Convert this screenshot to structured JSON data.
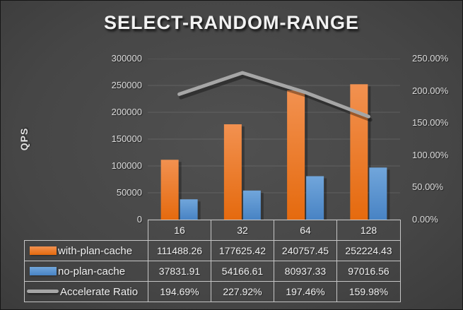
{
  "title": "SELECT-RANDOM-RANGE",
  "y_axis_label": "QPS",
  "colors": {
    "orange_top": "#F29150",
    "orange_bottom": "#E56A0E",
    "blue_top": "#71A6DB",
    "blue_bottom": "#4883C4",
    "line": "#A6A6A6",
    "grid": "rgba(255,255,255,0.12)",
    "axis_text": "#DCDCDC",
    "table_border": "#C6C6C6"
  },
  "chart_data": {
    "type": "bar",
    "subtype": "bar+line-combo",
    "title": "SELECT-RANDOM-RANGE",
    "ylabel": "QPS",
    "categories": [
      "16",
      "32",
      "64",
      "128"
    ],
    "bar_series": [
      {
        "name": "with-plan-cache",
        "axis": "left",
        "values": [
          111488.26,
          177625.42,
          240757.45,
          252224.43
        ]
      },
      {
        "name": "no-plan-cache",
        "axis": "left",
        "values": [
          37831.91,
          54166.61,
          80937.33,
          97016.56
        ]
      }
    ],
    "line_series": {
      "name": "Accelerate Ratio",
      "axis": "right",
      "values_percent": [
        194.69,
        227.92,
        197.46,
        159.98
      ]
    },
    "left_axis": {
      "min": 0,
      "max": 300000,
      "ticks": [
        "0",
        "50000",
        "100000",
        "150000",
        "200000",
        "250000",
        "300000"
      ]
    },
    "right_axis": {
      "min": 0,
      "max": 250,
      "ticks": [
        "0.00%",
        "50.00%",
        "100.00%",
        "150.00%",
        "200.00%",
        "250.00%"
      ]
    },
    "grid": true,
    "legend_position": "data-table-left"
  },
  "table": {
    "headers": [
      "16",
      "32",
      "64",
      "128"
    ],
    "rows": [
      {
        "label": "with-plan-cache",
        "swatch": "orange-bar",
        "values": [
          "111488.26",
          "177625.42",
          "240757.45",
          "252224.43"
        ]
      },
      {
        "label": "no-plan-cache",
        "swatch": "blue-bar",
        "values": [
          "37831.91",
          "54166.61",
          "80937.33",
          "97016.56"
        ]
      },
      {
        "label": "Accelerate Ratio",
        "swatch": "gray-line",
        "values": [
          "194.69%",
          "227.92%",
          "197.46%",
          "159.98%"
        ]
      }
    ]
  }
}
